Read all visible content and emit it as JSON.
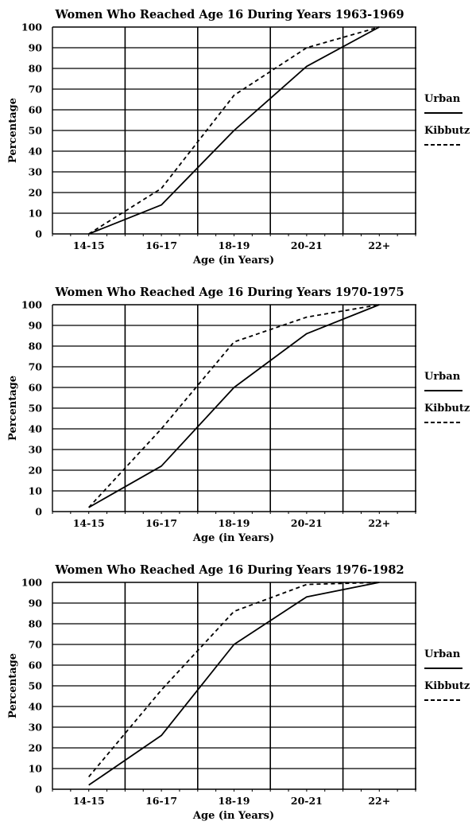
{
  "chart_data": [
    {
      "type": "line",
      "title": "Women Who Reached Age 16 During Years 1963-1969",
      "xlabel": "Age (in Years)",
      "ylabel": "Percentage",
      "categories": [
        "14-15",
        "16-17",
        "18-19",
        "20-21",
        "22+"
      ],
      "ylim": [
        0,
        100
      ],
      "yticks": [
        0,
        10,
        20,
        30,
        40,
        50,
        60,
        70,
        80,
        90,
        100
      ],
      "grid": true,
      "legend_position": "right",
      "series": [
        {
          "name": "Urban",
          "style": "solid",
          "x": [
            "14-15",
            "16-17",
            "18-19",
            "20-21",
            "22+"
          ],
          "values": [
            0,
            14,
            50,
            81,
            100
          ]
        },
        {
          "name": "Kibbutz",
          "style": "dashed",
          "x": [
            "14-15",
            "16-17",
            "18-19",
            "20-21",
            "22+"
          ],
          "values": [
            0,
            22,
            67,
            90,
            100
          ]
        }
      ]
    },
    {
      "type": "line",
      "title": "Women Who Reached Age 16 During Years 1970-1975",
      "xlabel": "Age (in Years)",
      "ylabel": "Percentage",
      "categories": [
        "14-15",
        "16-17",
        "18-19",
        "20-21",
        "22+"
      ],
      "ylim": [
        0,
        100
      ],
      "yticks": [
        0,
        10,
        20,
        30,
        40,
        50,
        60,
        70,
        80,
        90,
        100
      ],
      "grid": true,
      "legend_position": "right",
      "series": [
        {
          "name": "Urban",
          "style": "solid",
          "x": [
            "14-15",
            "16-17",
            "18-19",
            "20-21",
            "22+"
          ],
          "values": [
            2,
            22,
            60,
            86,
            100
          ]
        },
        {
          "name": "Kibbutz",
          "style": "dashed",
          "x": [
            "14-15",
            "16-17",
            "18-19",
            "20-21",
            "22+"
          ],
          "values": [
            2,
            40,
            82,
            94,
            100
          ]
        }
      ]
    },
    {
      "type": "line",
      "title": "Women Who Reached Age 16 During Years 1976-1982",
      "xlabel": "Age (in Years)",
      "ylabel": "Percentage",
      "categories": [
        "14-15",
        "16-17",
        "18-19",
        "20-21",
        "22+"
      ],
      "ylim": [
        0,
        100
      ],
      "yticks": [
        0,
        10,
        20,
        30,
        40,
        50,
        60,
        70,
        80,
        90,
        100
      ],
      "grid": true,
      "legend_position": "right",
      "series": [
        {
          "name": "Urban",
          "style": "solid",
          "x": [
            "14-15",
            "16-17",
            "18-19",
            "20-21",
            "22+"
          ],
          "values": [
            2,
            26,
            70,
            93,
            100
          ]
        },
        {
          "name": "Kibbutz",
          "style": "dashed",
          "x": [
            "14-15",
            "16-17",
            "18-19",
            "20-21",
            "22+"
          ],
          "values": [
            6,
            48,
            86,
            99,
            100
          ]
        }
      ]
    }
  ]
}
